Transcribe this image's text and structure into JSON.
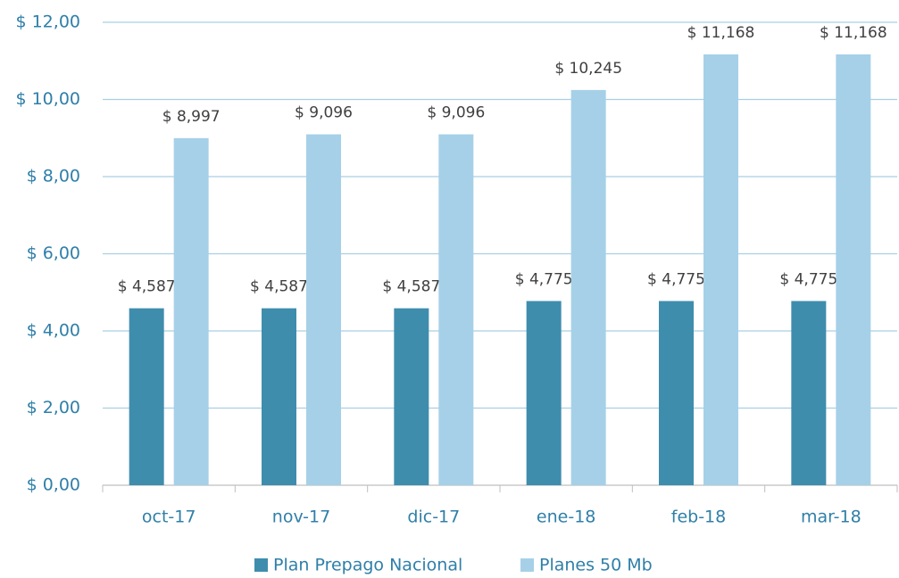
{
  "chart_data": {
    "type": "bar",
    "categories": [
      "oct-17",
      "nov-17",
      "dic-17",
      "ene-18",
      "feb-18",
      "mar-18"
    ],
    "series": [
      {
        "name": "Plan Prepago Nacional",
        "color": "#3f8dad",
        "values": [
          4.587,
          4.587,
          4.587,
          4.775,
          4.775,
          4.775
        ],
        "value_labels": [
          "$ 4,587",
          "$ 4,587",
          "$ 4,587",
          "$ 4,775",
          "$ 4,775",
          "$ 4,775"
        ]
      },
      {
        "name": "Planes 50 Mb",
        "color": "#a6d0e8",
        "values": [
          8.997,
          9.096,
          9.096,
          10.245,
          11.168,
          11.168
        ],
        "value_labels": [
          "$ 8,997",
          "$ 9,096",
          "$ 9,096",
          "$ 10,245",
          "$ 11,168",
          "$ 11,168"
        ]
      }
    ],
    "ylim": [
      0,
      12
    ],
    "yticks": [
      {
        "value": 0,
        "label": "$ 0,00"
      },
      {
        "value": 2,
        "label": "$ 2,00"
      },
      {
        "value": 4,
        "label": "$ 4,00"
      },
      {
        "value": 6,
        "label": "$ 6,00"
      },
      {
        "value": 8,
        "label": "$ 8,00"
      },
      {
        "value": 10,
        "label": "$ 10,00"
      },
      {
        "value": 12,
        "label": "$ 12,00"
      }
    ],
    "grid": true,
    "legend": "bottom"
  }
}
